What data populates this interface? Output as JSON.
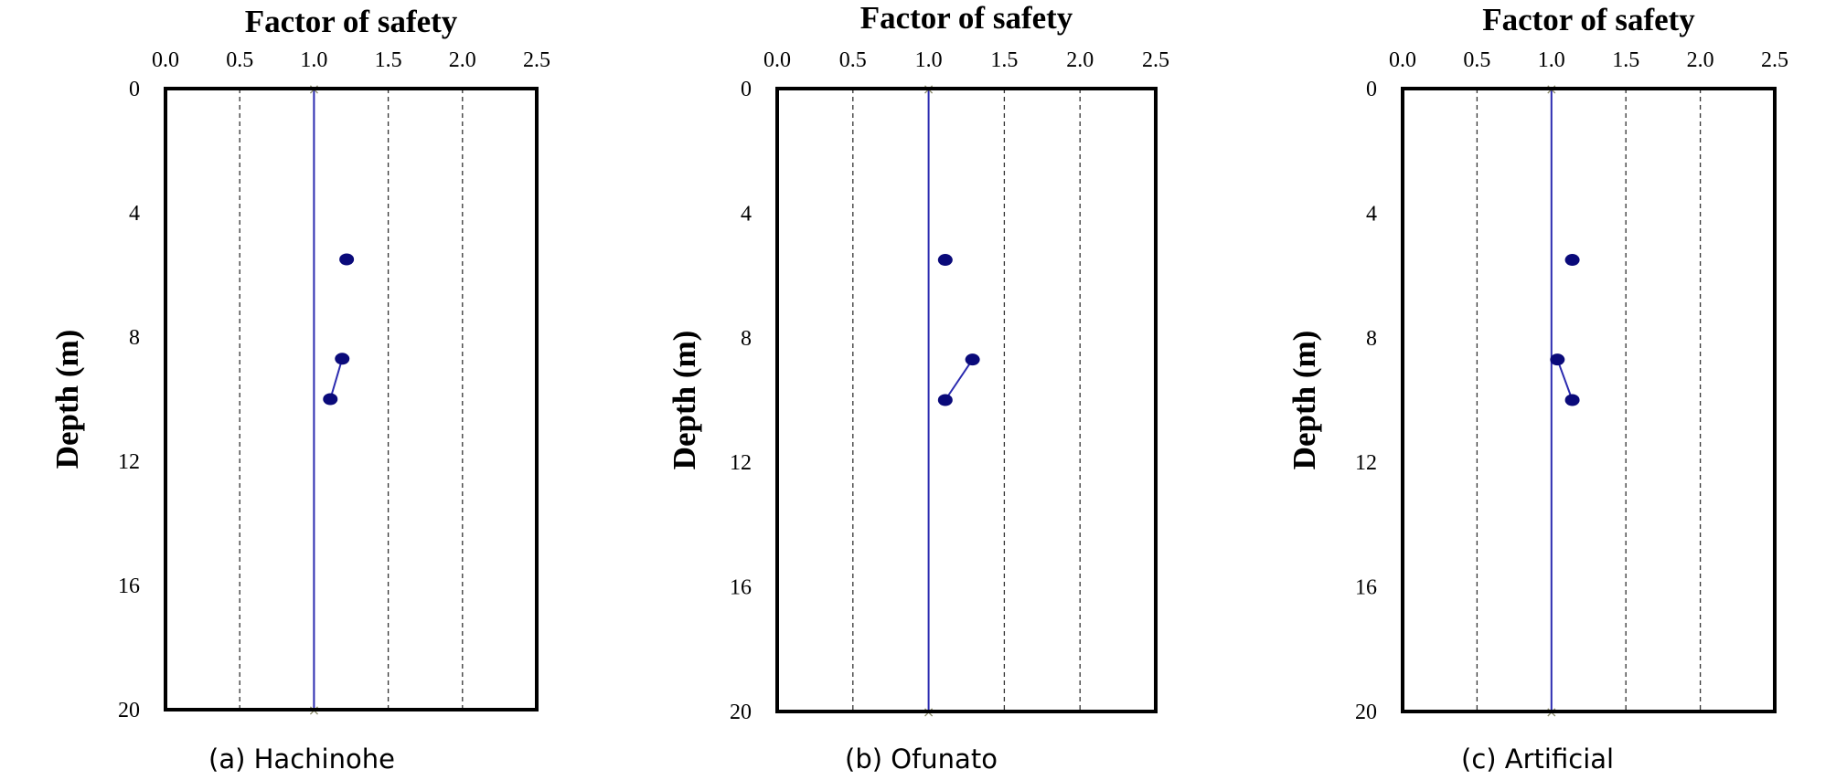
{
  "chart_data": [
    {
      "type": "scatter",
      "panel": "(a)",
      "caption": "(a) Hachinohe",
      "title": "Factor of safety",
      "ylabel": "Depth (m)",
      "xlim": [
        0.0,
        2.5
      ],
      "ylim": [
        0,
        20
      ],
      "y_inverted": true,
      "x_ticks": [
        "0.0",
        "0.5",
        "1.0",
        "1.5",
        "2.0",
        "2.5"
      ],
      "y_ticks": [
        "0",
        "4",
        "8",
        "12",
        "16",
        "20"
      ],
      "grid": "vertical dashed",
      "reference_line": {
        "x": 1.0,
        "color": "#2b2bb0"
      },
      "series": [
        {
          "x": [
            1.22,
            1.19,
            1.11
          ],
          "y": [
            5.5,
            8.7,
            10.0
          ],
          "color": "#0a0a7a",
          "connect": [
            [
              1,
              2
            ]
          ]
        }
      ]
    },
    {
      "type": "scatter",
      "panel": "(b)",
      "caption": "(b) Ofunato",
      "title": "Factor of safety",
      "ylabel": "Depth (m)",
      "xlim": [
        0.0,
        2.5
      ],
      "ylim": [
        0,
        20
      ],
      "y_inverted": true,
      "x_ticks": [
        "0.0",
        "0.5",
        "1.0",
        "1.5",
        "2.0",
        "2.5"
      ],
      "y_ticks": [
        "0",
        "4",
        "8",
        "12",
        "16",
        "20"
      ],
      "grid": "vertical dashed",
      "reference_line": {
        "x": 1.0,
        "color": "#2b2bb0"
      },
      "series": [
        {
          "x": [
            1.11,
            1.29,
            1.11
          ],
          "y": [
            5.5,
            8.7,
            10.0
          ],
          "color": "#0a0a7a",
          "connect": [
            [
              1,
              2
            ]
          ]
        }
      ]
    },
    {
      "type": "scatter",
      "panel": "(c)",
      "caption": "(c) Artificial",
      "title": "Factor of safety",
      "ylabel": "Depth (m)",
      "xlim": [
        0.0,
        2.5
      ],
      "ylim": [
        0,
        20
      ],
      "y_inverted": true,
      "x_ticks": [
        "0.0",
        "0.5",
        "1.0",
        "1.5",
        "2.0",
        "2.5"
      ],
      "y_ticks": [
        "0",
        "4",
        "8",
        "12",
        "16",
        "20"
      ],
      "grid": "vertical dashed",
      "reference_line": {
        "x": 1.0,
        "color": "#2b2bb0"
      },
      "series": [
        {
          "x": [
            1.14,
            1.04,
            1.14
          ],
          "y": [
            5.5,
            8.7,
            10.0
          ],
          "color": "#0a0a7a",
          "connect": [
            [
              1,
              2
            ]
          ]
        }
      ]
    }
  ]
}
